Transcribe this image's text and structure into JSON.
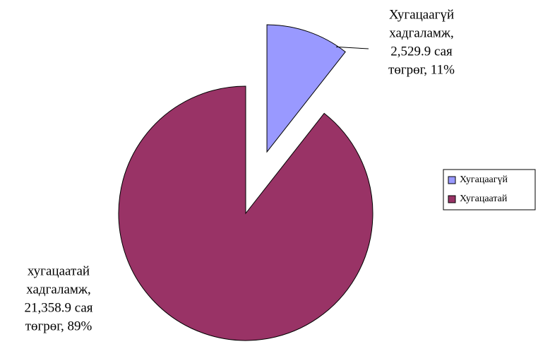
{
  "chart_data": {
    "type": "pie",
    "categories": [
      "Хугацаагүй",
      "Хугацаатай"
    ],
    "values": [
      2529.9,
      21358.9
    ],
    "value_labels": [
      [
        "Хугацаагүй",
        "хадгаламж,",
        "2,529.9 сая",
        "төгрөг, 11%"
      ],
      [
        "хугацаатай",
        "хадгаламж,",
        "21,358.9 сая",
        "төгрөг, 89%"
      ]
    ],
    "colors": [
      "#9999ff",
      "#993366"
    ],
    "exploded": [
      true,
      false
    ],
    "legend": "right"
  }
}
